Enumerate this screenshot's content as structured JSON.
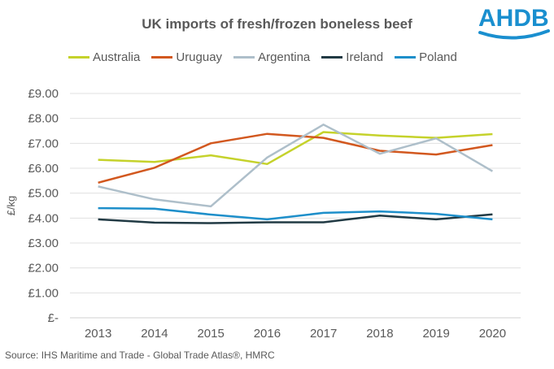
{
  "chart_data": {
    "type": "line",
    "title": "UK imports of fresh/frozen boneless beef",
    "xlabel": "",
    "ylabel": "£/kg",
    "categories": [
      "2013",
      "2014",
      "2015",
      "2016",
      "2017",
      "2018",
      "2019",
      "2020"
    ],
    "ylim": [
      0,
      9
    ],
    "y_ticks": [
      "£-",
      "£1.00",
      "£2.00",
      "£3.00",
      "£4.00",
      "£5.00",
      "£6.00",
      "£7.00",
      "£8.00",
      "£9.00"
    ],
    "grid": true,
    "legend_position": "top",
    "series": [
      {
        "name": "Australia",
        "color": "#c5d22b",
        "values": [
          6.34,
          6.25,
          6.52,
          6.17,
          7.45,
          7.31,
          7.22,
          7.37
        ]
      },
      {
        "name": "Uruguay",
        "color": "#d2581f",
        "values": [
          5.42,
          6.02,
          7.0,
          7.38,
          7.22,
          6.7,
          6.55,
          6.93
        ]
      },
      {
        "name": "Argentina",
        "color": "#aebfca",
        "values": [
          5.27,
          4.75,
          4.47,
          6.43,
          7.75,
          6.58,
          7.2,
          5.88
        ]
      },
      {
        "name": "Ireland",
        "color": "#213a44",
        "values": [
          3.95,
          3.82,
          3.8,
          3.83,
          3.83,
          4.1,
          3.95,
          4.15
        ]
      },
      {
        "name": "Poland",
        "color": "#1e8fca",
        "values": [
          4.4,
          4.38,
          4.14,
          3.95,
          4.21,
          4.27,
          4.17,
          3.95
        ]
      }
    ]
  },
  "source": "Source: IHS Maritime and Trade  - Global Trade  Atlas®, HMRC",
  "logo": {
    "text": "AHDB",
    "color": "#1a8fcf"
  }
}
